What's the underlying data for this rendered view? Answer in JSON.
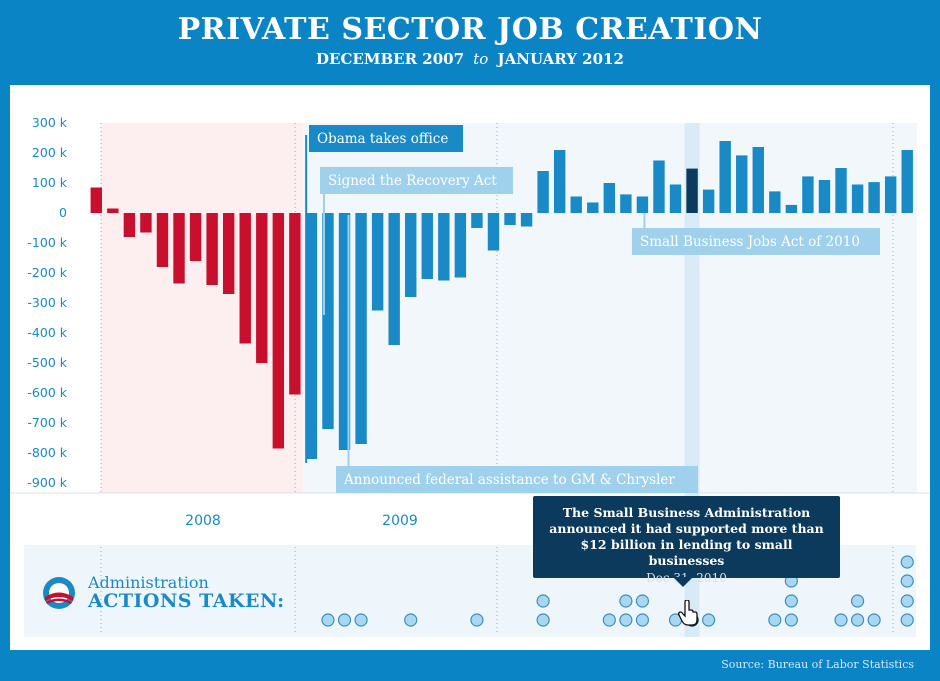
{
  "header": {
    "title": "PRIVATE SECTOR JOB CREATION",
    "subtitle_start": "DECEMBER 2007",
    "subtitle_to": "to",
    "subtitle_end": "JANUARY 2012"
  },
  "source": "Source: Bureau of Labor Statistics",
  "colors": {
    "background": "#0a84c4",
    "negative_pre": "#c8102e",
    "post_inauguration": "#1a8ac6",
    "highlight": "#0b3a5c",
    "pre_zone": "#fdeef0",
    "post_zone": "#f1f7fb",
    "annotation_dark": "#1a8ac6",
    "annotation_light": "#9fd0ec"
  },
  "chart_data": {
    "type": "bar",
    "title": "PRIVATE SECTOR JOB CREATION",
    "subtitle": "DECEMBER 2007 to JANUARY 2012",
    "ylim": [
      -900,
      300
    ],
    "y_ticks": [
      "300 k",
      "200 k",
      "100 k",
      "0",
      "-100 k",
      "-200 k",
      "-300 k",
      "-400 k",
      "-500 k",
      "-600 k",
      "-700 k",
      "-800 k",
      "-900 k"
    ],
    "x_tick_labels": [
      "2008",
      "2009"
    ],
    "categories": [
      "Dec 2007",
      "Jan 2008",
      "Feb 2008",
      "Mar 2008",
      "Apr 2008",
      "May 2008",
      "Jun 2008",
      "Jul 2008",
      "Aug 2008",
      "Sep 2008",
      "Oct 2008",
      "Nov 2008",
      "Dec 2008",
      "Jan 2009",
      "Feb 2009",
      "Mar 2009",
      "Apr 2009",
      "May 2009",
      "Jun 2009",
      "Jul 2009",
      "Aug 2009",
      "Sep 2009",
      "Oct 2009",
      "Nov 2009",
      "Dec 2009",
      "Jan 2010",
      "Feb 2010",
      "Mar 2010",
      "Apr 2010",
      "May 2010",
      "Jun 2010",
      "Jul 2010",
      "Aug 2010",
      "Sep 2010",
      "Oct 2010",
      "Nov 2010",
      "Dec 2010",
      "Jan 2011",
      "Feb 2011",
      "Mar 2011",
      "Apr 2011",
      "May 2011",
      "Jun 2011",
      "Jul 2011",
      "Aug 2011",
      "Sep 2011",
      "Oct 2011",
      "Nov 2011",
      "Dec 2011",
      "Jan 2012"
    ],
    "values": [
      85,
      15,
      -80,
      -65,
      -180,
      -235,
      -160,
      -240,
      -270,
      -435,
      -500,
      -785,
      -605,
      -820,
      -720,
      -790,
      -770,
      -325,
      -440,
      -280,
      -220,
      -225,
      -215,
      -50,
      -125,
      -40,
      -45,
      140,
      210,
      55,
      35,
      100,
      62,
      55,
      175,
      95,
      148,
      78,
      240,
      192,
      220,
      72,
      27,
      122,
      110,
      150,
      95,
      103,
      122,
      210
    ],
    "highlight_index": 36,
    "annotations": [
      {
        "label": "Obama takes office",
        "style": "dark"
      },
      {
        "label": "Signed the Recovery Act",
        "style": "light"
      },
      {
        "label": "Announced federal assistance to GM & Chrysler",
        "style": "light"
      },
      {
        "label": "Small Business Jobs Act of 2010",
        "style": "light"
      }
    ],
    "action_counts": [
      0,
      0,
      0,
      0,
      0,
      0,
      0,
      0,
      0,
      0,
      0,
      0,
      0,
      0,
      1,
      1,
      1,
      0,
      0,
      1,
      0,
      0,
      0,
      1,
      0,
      0,
      0,
      2,
      0,
      0,
      0,
      1,
      2,
      2,
      0,
      1,
      1,
      1,
      0,
      0,
      0,
      1,
      3,
      0,
      0,
      1,
      2,
      1,
      0,
      4
    ]
  },
  "actions": {
    "label_top": "Administration",
    "label_bottom": "ACTIONS TAKEN:"
  },
  "tooltip": {
    "text": "The Small Business Administration announced it had supported more than $12 billion in lending to small businesses",
    "date": "Dec 31, 2010"
  }
}
